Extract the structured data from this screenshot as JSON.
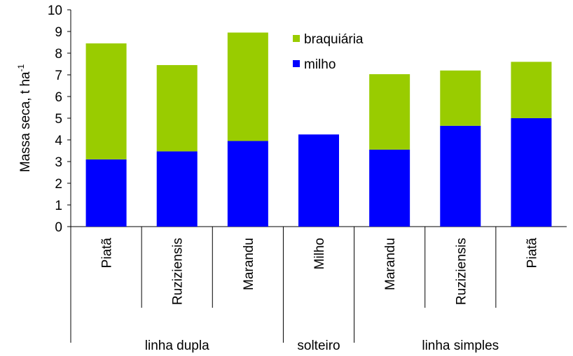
{
  "chart_data": {
    "type": "stacked-bar",
    "ylabel": "Massa seca, t ha",
    "ylabel_sup": "-1",
    "groups": [
      {
        "name": "linha dupla",
        "categories": [
          "Piatã",
          "Ruziziensis",
          "Marandu"
        ]
      },
      {
        "name": "solteiro",
        "categories": [
          "Milho"
        ]
      },
      {
        "name": "linha simples",
        "categories": [
          "Marandu",
          "Ruziziensis",
          "Piatã"
        ]
      }
    ],
    "series": [
      {
        "name": "milho",
        "color": "#0000ff",
        "values": [
          3.1,
          3.47,
          3.95,
          4.25,
          3.55,
          4.65,
          5.0
        ]
      },
      {
        "name": "braquiária",
        "color": "#99cc00",
        "values": [
          5.35,
          3.98,
          5.0,
          null,
          3.48,
          2.55,
          2.6
        ]
      }
    ],
    "ylim": [
      0,
      10
    ],
    "yticks": [
      0,
      1,
      2,
      3,
      4,
      5,
      6,
      7,
      8,
      9,
      10
    ],
    "grid": false
  }
}
